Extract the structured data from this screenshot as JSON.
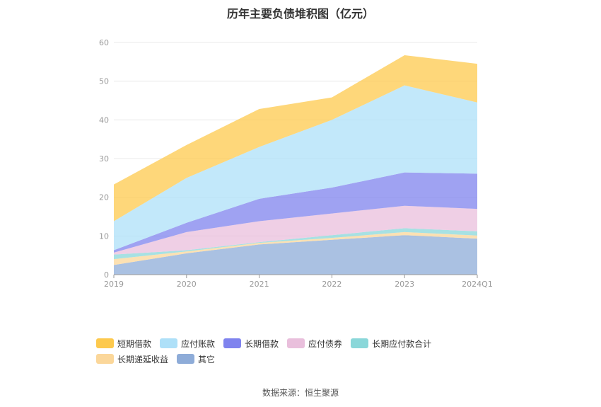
{
  "chart_data": {
    "type": "area",
    "stacked": true,
    "title": "历年主要负债堆积图（亿元）",
    "categories": [
      "2019",
      "2020",
      "2021",
      "2022",
      "2023",
      "2024Q1"
    ],
    "ylim": [
      0,
      60
    ],
    "yticks": [
      0,
      10,
      20,
      30,
      40,
      50,
      60
    ],
    "grid": true,
    "legend_position": "bottom",
    "series": [
      {
        "name": "其它",
        "color": "#8eacd8",
        "values": [
          2.5,
          5.5,
          7.8,
          9.0,
          10.2,
          9.3
        ]
      },
      {
        "name": "长期递延收益",
        "color": "#fbd79a",
        "values": [
          1.5,
          0.5,
          0.4,
          0.5,
          0.8,
          0.8
        ]
      },
      {
        "name": "长期应付款合计",
        "color": "#8ad7d9",
        "values": [
          1.2,
          0.3,
          0.2,
          0.7,
          1.0,
          1.1
        ]
      },
      {
        "name": "应付债券",
        "color": "#e9bfdc",
        "values": [
          0.5,
          4.7,
          5.4,
          5.6,
          5.8,
          5.8
        ]
      },
      {
        "name": "长期借款",
        "color": "#7f83ee",
        "values": [
          0.6,
          2.4,
          5.8,
          6.7,
          8.6,
          9.1
        ]
      },
      {
        "name": "应付账款",
        "color": "#aee0f8",
        "values": [
          7.5,
          11.6,
          13.4,
          17.5,
          22.5,
          18.4
        ]
      },
      {
        "name": "短期借款",
        "color": "#fdc94d",
        "values": [
          9.5,
          8.5,
          9.8,
          5.8,
          7.8,
          10.0
        ]
      }
    ],
    "legend_order": [
      "短期借款",
      "应付账款",
      "长期借款",
      "应付债券",
      "长期应付款合计",
      "长期递延收益",
      "其它"
    ]
  },
  "source_text": "数据来源：恒生聚源"
}
